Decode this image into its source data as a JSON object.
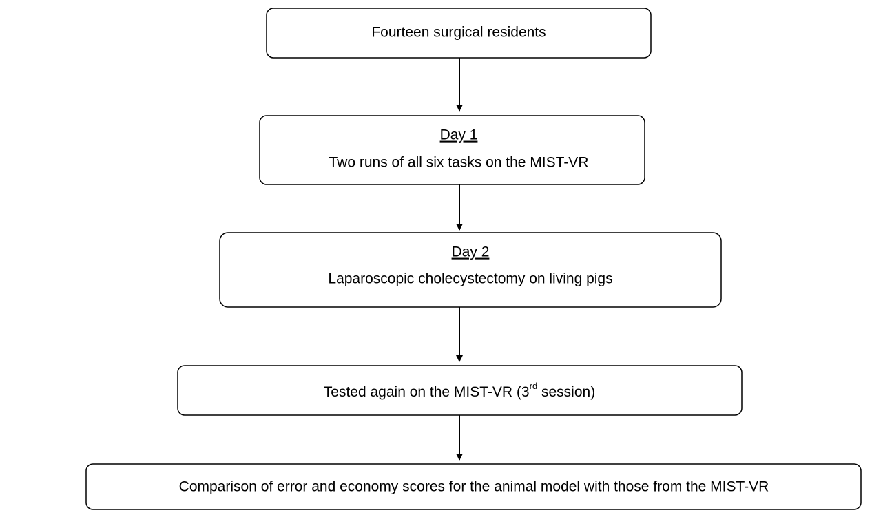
{
  "nodes": [
    {
      "label": "Fourteen surgical residents"
    },
    {
      "heading": "Day 1",
      "label": "Two runs of all six tasks on the MIST-VR"
    },
    {
      "heading": "Day 2",
      "label": "Laparoscopic cholecystectomy on living pigs"
    },
    {
      "label_parts": [
        "Tested again on the MIST-VR (3",
        "rd",
        " session)"
      ]
    },
    {
      "label": "Comparison of error and economy scores for the animal model with those from the MIST-VR"
    }
  ]
}
